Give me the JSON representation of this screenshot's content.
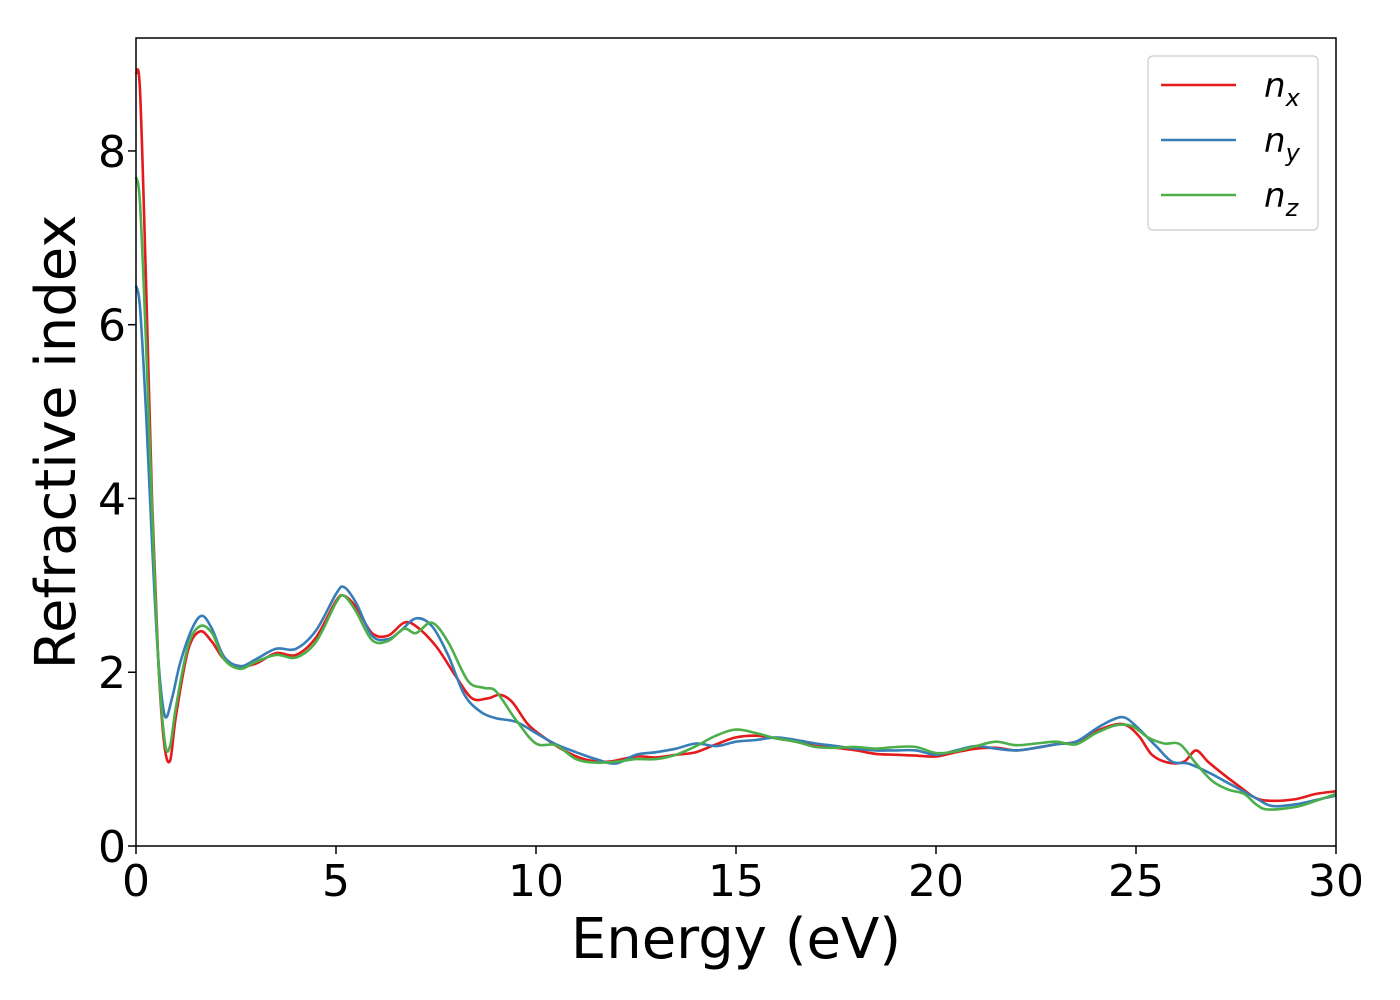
{
  "chart_data": {
    "type": "line",
    "xlabel": "Energy (eV)",
    "ylabel": "Refractive index",
    "xlim": [
      0,
      30
    ],
    "ylim": [
      0,
      9.3
    ],
    "xticks": [
      0,
      5,
      10,
      15,
      20,
      25,
      30
    ],
    "yticks": [
      0,
      2,
      4,
      6,
      8
    ],
    "grid": false,
    "legend_position": "top-right",
    "series": [
      {
        "name": "n_x",
        "legend_base": "n",
        "legend_sub": "x",
        "color": "#e41a1c",
        "points": [
          [
            0,
            8.9
          ],
          [
            0.1,
            8.7
          ],
          [
            0.25,
            6.5
          ],
          [
            0.4,
            4.0
          ],
          [
            0.55,
            2.2
          ],
          [
            0.7,
            1.2
          ],
          [
            0.85,
            0.98
          ],
          [
            1.0,
            1.5
          ],
          [
            1.3,
            2.25
          ],
          [
            1.6,
            2.47
          ],
          [
            1.9,
            2.35
          ],
          [
            2.2,
            2.15
          ],
          [
            2.6,
            2.07
          ],
          [
            3.0,
            2.1
          ],
          [
            3.5,
            2.22
          ],
          [
            4.0,
            2.2
          ],
          [
            4.5,
            2.4
          ],
          [
            5.0,
            2.82
          ],
          [
            5.2,
            2.88
          ],
          [
            5.5,
            2.75
          ],
          [
            5.9,
            2.45
          ],
          [
            6.3,
            2.42
          ],
          [
            6.7,
            2.57
          ],
          [
            7.0,
            2.53
          ],
          [
            7.5,
            2.3
          ],
          [
            8.0,
            1.95
          ],
          [
            8.4,
            1.7
          ],
          [
            8.8,
            1.7
          ],
          [
            9.1,
            1.74
          ],
          [
            9.4,
            1.66
          ],
          [
            9.8,
            1.4
          ],
          [
            10.2,
            1.25
          ],
          [
            10.7,
            1.1
          ],
          [
            11.2,
            1.0
          ],
          [
            11.8,
            0.97
          ],
          [
            12.5,
            1.03
          ],
          [
            13.0,
            1.02
          ],
          [
            13.5,
            1.05
          ],
          [
            14.0,
            1.08
          ],
          [
            14.5,
            1.17
          ],
          [
            15.0,
            1.25
          ],
          [
            15.5,
            1.27
          ],
          [
            16.0,
            1.24
          ],
          [
            16.5,
            1.2
          ],
          [
            17.0,
            1.15
          ],
          [
            17.5,
            1.13
          ],
          [
            18.0,
            1.1
          ],
          [
            18.5,
            1.06
          ],
          [
            19.0,
            1.05
          ],
          [
            19.5,
            1.04
          ],
          [
            20.0,
            1.03
          ],
          [
            20.5,
            1.08
          ],
          [
            21.0,
            1.12
          ],
          [
            21.5,
            1.13
          ],
          [
            22.0,
            1.1
          ],
          [
            22.5,
            1.13
          ],
          [
            23.0,
            1.17
          ],
          [
            23.5,
            1.2
          ],
          [
            24.0,
            1.32
          ],
          [
            24.5,
            1.4
          ],
          [
            24.8,
            1.38
          ],
          [
            25.1,
            1.25
          ],
          [
            25.4,
            1.05
          ],
          [
            25.8,
            0.96
          ],
          [
            26.2,
            0.97
          ],
          [
            26.5,
            1.1
          ],
          [
            26.8,
            0.97
          ],
          [
            27.2,
            0.82
          ],
          [
            27.6,
            0.68
          ],
          [
            28.0,
            0.55
          ],
          [
            28.4,
            0.52
          ],
          [
            29.0,
            0.54
          ],
          [
            29.5,
            0.6
          ],
          [
            30.0,
            0.63
          ]
        ]
      },
      {
        "name": "n_y",
        "legend_base": "n",
        "legend_sub": "y",
        "color": "#377eb8",
        "points": [
          [
            0,
            6.45
          ],
          [
            0.1,
            6.2
          ],
          [
            0.25,
            5.0
          ],
          [
            0.4,
            3.5
          ],
          [
            0.55,
            2.2
          ],
          [
            0.72,
            1.5
          ],
          [
            0.9,
            1.7
          ],
          [
            1.1,
            2.1
          ],
          [
            1.4,
            2.5
          ],
          [
            1.65,
            2.65
          ],
          [
            1.9,
            2.5
          ],
          [
            2.2,
            2.18
          ],
          [
            2.6,
            2.07
          ],
          [
            3.0,
            2.15
          ],
          [
            3.5,
            2.27
          ],
          [
            4.0,
            2.27
          ],
          [
            4.5,
            2.48
          ],
          [
            5.0,
            2.9
          ],
          [
            5.2,
            2.98
          ],
          [
            5.5,
            2.8
          ],
          [
            5.9,
            2.42
          ],
          [
            6.3,
            2.38
          ],
          [
            6.6,
            2.47
          ],
          [
            7.0,
            2.62
          ],
          [
            7.4,
            2.53
          ],
          [
            7.8,
            2.2
          ],
          [
            8.2,
            1.75
          ],
          [
            8.6,
            1.55
          ],
          [
            9.0,
            1.47
          ],
          [
            9.5,
            1.43
          ],
          [
            10.0,
            1.3
          ],
          [
            10.5,
            1.17
          ],
          [
            11.0,
            1.08
          ],
          [
            11.5,
            1.0
          ],
          [
            12.0,
            0.95
          ],
          [
            12.5,
            1.05
          ],
          [
            13.0,
            1.08
          ],
          [
            13.5,
            1.12
          ],
          [
            14.0,
            1.18
          ],
          [
            14.5,
            1.15
          ],
          [
            15.0,
            1.2
          ],
          [
            15.5,
            1.22
          ],
          [
            16.0,
            1.25
          ],
          [
            16.5,
            1.22
          ],
          [
            17.0,
            1.18
          ],
          [
            17.5,
            1.15
          ],
          [
            18.0,
            1.12
          ],
          [
            18.5,
            1.1
          ],
          [
            19.0,
            1.1
          ],
          [
            19.5,
            1.1
          ],
          [
            20.0,
            1.05
          ],
          [
            20.5,
            1.1
          ],
          [
            21.0,
            1.15
          ],
          [
            21.5,
            1.12
          ],
          [
            22.0,
            1.1
          ],
          [
            22.5,
            1.13
          ],
          [
            23.0,
            1.17
          ],
          [
            23.5,
            1.2
          ],
          [
            24.0,
            1.35
          ],
          [
            24.4,
            1.45
          ],
          [
            24.7,
            1.48
          ],
          [
            25.0,
            1.38
          ],
          [
            25.5,
            1.15
          ],
          [
            25.9,
            0.97
          ],
          [
            26.3,
            0.95
          ],
          [
            26.8,
            0.85
          ],
          [
            27.2,
            0.75
          ],
          [
            27.6,
            0.65
          ],
          [
            28.0,
            0.55
          ],
          [
            28.4,
            0.46
          ],
          [
            29.0,
            0.48
          ],
          [
            29.5,
            0.53
          ],
          [
            30.0,
            0.58
          ]
        ]
      },
      {
        "name": "n_z",
        "legend_base": "n",
        "legend_sub": "z",
        "color": "#4daf4a",
        "points": [
          [
            0,
            7.7
          ],
          [
            0.1,
            7.4
          ],
          [
            0.25,
            5.8
          ],
          [
            0.4,
            3.9
          ],
          [
            0.55,
            2.2
          ],
          [
            0.72,
            1.2
          ],
          [
            0.85,
            1.15
          ],
          [
            1.0,
            1.6
          ],
          [
            1.3,
            2.3
          ],
          [
            1.6,
            2.53
          ],
          [
            1.9,
            2.45
          ],
          [
            2.2,
            2.15
          ],
          [
            2.6,
            2.04
          ],
          [
            3.0,
            2.12
          ],
          [
            3.5,
            2.2
          ],
          [
            4.0,
            2.17
          ],
          [
            4.5,
            2.35
          ],
          [
            5.0,
            2.8
          ],
          [
            5.2,
            2.88
          ],
          [
            5.5,
            2.7
          ],
          [
            5.9,
            2.37
          ],
          [
            6.3,
            2.36
          ],
          [
            6.7,
            2.5
          ],
          [
            7.0,
            2.45
          ],
          [
            7.4,
            2.57
          ],
          [
            7.8,
            2.35
          ],
          [
            8.3,
            1.9
          ],
          [
            8.7,
            1.82
          ],
          [
            9.0,
            1.78
          ],
          [
            9.5,
            1.45
          ],
          [
            10.0,
            1.18
          ],
          [
            10.5,
            1.16
          ],
          [
            11.0,
            1.0
          ],
          [
            11.5,
            0.96
          ],
          [
            12.0,
            0.97
          ],
          [
            12.5,
            1.0
          ],
          [
            13.0,
            1.0
          ],
          [
            13.5,
            1.05
          ],
          [
            14.0,
            1.15
          ],
          [
            14.5,
            1.27
          ],
          [
            15.0,
            1.34
          ],
          [
            15.5,
            1.3
          ],
          [
            16.0,
            1.24
          ],
          [
            16.5,
            1.2
          ],
          [
            17.0,
            1.14
          ],
          [
            17.5,
            1.13
          ],
          [
            18.0,
            1.14
          ],
          [
            18.5,
            1.12
          ],
          [
            19.0,
            1.14
          ],
          [
            19.5,
            1.14
          ],
          [
            20.0,
            1.07
          ],
          [
            20.5,
            1.09
          ],
          [
            21.0,
            1.15
          ],
          [
            21.5,
            1.2
          ],
          [
            22.0,
            1.16
          ],
          [
            22.5,
            1.18
          ],
          [
            23.0,
            1.2
          ],
          [
            23.5,
            1.17
          ],
          [
            24.0,
            1.3
          ],
          [
            24.5,
            1.39
          ],
          [
            24.9,
            1.38
          ],
          [
            25.3,
            1.25
          ],
          [
            25.7,
            1.18
          ],
          [
            26.1,
            1.17
          ],
          [
            26.5,
            0.95
          ],
          [
            26.9,
            0.75
          ],
          [
            27.3,
            0.65
          ],
          [
            27.7,
            0.6
          ],
          [
            28.0,
            0.48
          ],
          [
            28.3,
            0.42
          ],
          [
            29.0,
            0.45
          ],
          [
            29.5,
            0.52
          ],
          [
            30.0,
            0.6
          ]
        ]
      }
    ]
  }
}
